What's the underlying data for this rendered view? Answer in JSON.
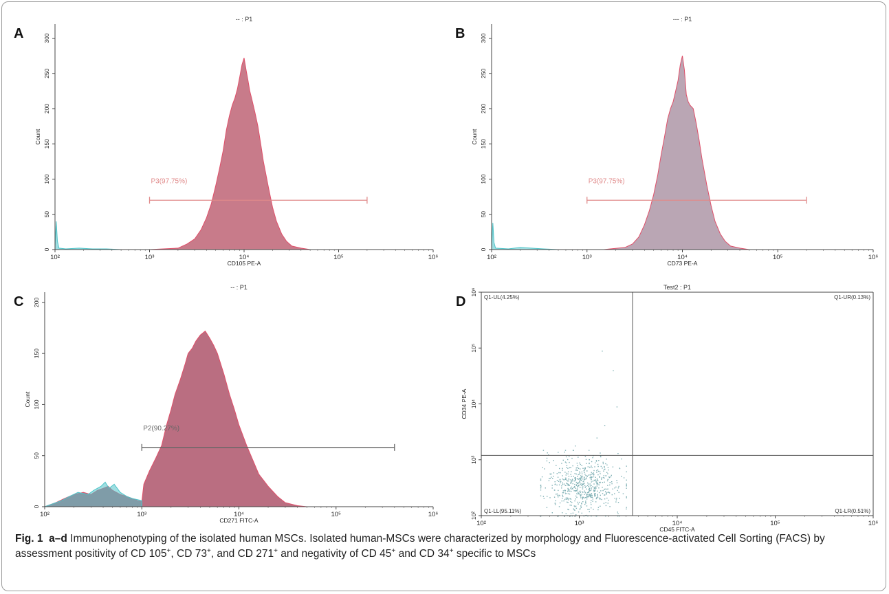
{
  "chart_data": [
    {
      "panel": "A",
      "type": "area",
      "title": "-- : P1",
      "xlabel": "CD105 PE-A",
      "ylabel": "Count",
      "xscale": "log",
      "xlim": [
        100,
        1000000
      ],
      "ylim": [
        0,
        320
      ],
      "xticks": [
        "10²",
        "10³",
        "10⁴",
        "10⁵",
        "10⁶"
      ],
      "yticks": [
        "0",
        "50",
        "100",
        "150",
        "200",
        "250",
        "300"
      ],
      "gate": {
        "label": "P3(97.75%)",
        "x_range": [
          1000,
          200000
        ],
        "y": 70,
        "color": "#e08a8a"
      },
      "series": [
        {
          "color": "#c0697a",
          "points": [
            [
              1000,
              0
            ],
            [
              2000,
              2
            ],
            [
              2500,
              8
            ],
            [
              3000,
              15
            ],
            [
              3500,
              28
            ],
            [
              4000,
              45
            ],
            [
              4500,
              65
            ],
            [
              5000,
              90
            ],
            [
              5500,
              115
            ],
            [
              6000,
              140
            ],
            [
              6500,
              170
            ],
            [
              7000,
              190
            ],
            [
              7500,
              205
            ],
            [
              8000,
              215
            ],
            [
              8500,
              228
            ],
            [
              9000,
              245
            ],
            [
              9500,
              262
            ],
            [
              10000,
              272
            ],
            [
              10500,
              255
            ],
            [
              11000,
              240
            ],
            [
              11500,
              225
            ],
            [
              12000,
              215
            ],
            [
              13000,
              195
            ],
            [
              14000,
              175
            ],
            [
              15000,
              150
            ],
            [
              16000,
              125
            ],
            [
              18000,
              90
            ],
            [
              20000,
              60
            ],
            [
              22000,
              40
            ],
            [
              25000,
              22
            ],
            [
              28000,
              12
            ],
            [
              32000,
              5
            ],
            [
              40000,
              2
            ],
            [
              50000,
              0
            ]
          ]
        },
        {
          "color": "#4fc3c8",
          "points": [
            [
              100,
              4
            ],
            [
              103,
              40
            ],
            [
              106,
              12
            ],
            [
              110,
              2
            ],
            [
              130,
              1
            ],
            [
              180,
              2
            ],
            [
              250,
              1
            ],
            [
              350,
              1
            ],
            [
              500,
              0
            ]
          ]
        }
      ]
    },
    {
      "panel": "B",
      "type": "area",
      "title": "--- : P1",
      "xlabel": "CD73 PE-A",
      "ylabel": "Count",
      "xscale": "log",
      "xlim": [
        100,
        1000000
      ],
      "ylim": [
        0,
        320
      ],
      "xticks": [
        "10²",
        "10³",
        "10⁴",
        "10⁵",
        "10⁶"
      ],
      "yticks": [
        "0",
        "50",
        "100",
        "150",
        "200",
        "250",
        "300"
      ],
      "gate": {
        "label": "P3(97.75%)",
        "x_range": [
          1000,
          200000
        ],
        "y": 70,
        "color": "#e08a8a"
      },
      "series": [
        {
          "color": "#b09aaa",
          "points": [
            [
              1500,
              0
            ],
            [
              2500,
              3
            ],
            [
              3000,
              8
            ],
            [
              3500,
              18
            ],
            [
              4000,
              35
            ],
            [
              4500,
              55
            ],
            [
              5000,
              78
            ],
            [
              5500,
              105
            ],
            [
              6000,
              135
            ],
            [
              6500,
              160
            ],
            [
              7000,
              185
            ],
            [
              7500,
              200
            ],
            [
              8000,
              210
            ],
            [
              8500,
              225
            ],
            [
              9000,
              240
            ],
            [
              9500,
              262
            ],
            [
              10000,
              275
            ],
            [
              10500,
              255
            ],
            [
              11000,
              220
            ],
            [
              11500,
              210
            ],
            [
              12000,
              205
            ],
            [
              13000,
              200
            ],
            [
              14000,
              178
            ],
            [
              15000,
              155
            ],
            [
              16000,
              130
            ],
            [
              18000,
              92
            ],
            [
              20000,
              62
            ],
            [
              22000,
              40
            ],
            [
              25000,
              22
            ],
            [
              28000,
              12
            ],
            [
              32000,
              5
            ],
            [
              40000,
              2
            ],
            [
              50000,
              0
            ]
          ]
        },
        {
          "color": "#4fc3c8",
          "points": [
            [
              100,
              2
            ],
            [
              103,
              38
            ],
            [
              106,
              10
            ],
            [
              110,
              2
            ],
            [
              150,
              1
            ],
            [
              200,
              3
            ],
            [
              260,
              2
            ],
            [
              350,
              1
            ],
            [
              500,
              0
            ]
          ]
        }
      ]
    },
    {
      "panel": "C",
      "type": "area",
      "title": "-- : P1",
      "xlabel": "CD271 FITC-A",
      "ylabel": "Count",
      "xscale": "log",
      "xlim": [
        100,
        1000000
      ],
      "ylim": [
        0,
        210
      ],
      "xticks": [
        "10²",
        "10³",
        "10⁴",
        "10⁵",
        "10⁶"
      ],
      "yticks": [
        "0",
        "50",
        "100",
        "150",
        "200"
      ],
      "gate": {
        "label": "P2(90.27%)",
        "x_range": [
          1000,
          400000
        ],
        "y": 58,
        "color": "#666666"
      },
      "series": [
        {
          "color": "#b05a70",
          "points": [
            [
              100,
              0
            ],
            [
              130,
              4
            ],
            [
              160,
              8
            ],
            [
              200,
              12
            ],
            [
              250,
              14
            ],
            [
              300,
              12
            ],
            [
              350,
              16
            ],
            [
              400,
              18
            ],
            [
              450,
              20
            ],
            [
              500,
              16
            ],
            [
              600,
              12
            ],
            [
              700,
              10
            ],
            [
              800,
              8
            ],
            [
              900,
              6
            ],
            [
              1000,
              5
            ],
            [
              1050,
              22
            ],
            [
              1200,
              35
            ],
            [
              1400,
              48
            ],
            [
              1600,
              60
            ],
            [
              1800,
              80
            ],
            [
              2000,
              95
            ],
            [
              2200,
              110
            ],
            [
              2500,
              125
            ],
            [
              2800,
              140
            ],
            [
              3000,
              150
            ],
            [
              3300,
              155
            ],
            [
              3600,
              162
            ],
            [
              4000,
              168
            ],
            [
              4500,
              172
            ],
            [
              5000,
              165
            ],
            [
              5500,
              158
            ],
            [
              6000,
              150
            ],
            [
              7000,
              130
            ],
            [
              8000,
              110
            ],
            [
              9000,
              95
            ],
            [
              10000,
              80
            ],
            [
              12000,
              60
            ],
            [
              14000,
              45
            ],
            [
              16000,
              32
            ],
            [
              20000,
              20
            ],
            [
              25000,
              10
            ],
            [
              30000,
              4
            ],
            [
              40000,
              1
            ],
            [
              50000,
              0
            ]
          ]
        },
        {
          "color": "#4fc3c8",
          "points": [
            [
              100,
              0
            ],
            [
              150,
              6
            ],
            [
              180,
              10
            ],
            [
              220,
              14
            ],
            [
              280,
              12
            ],
            [
              320,
              16
            ],
            [
              380,
              20
            ],
            [
              420,
              24
            ],
            [
              460,
              18
            ],
            [
              520,
              22
            ],
            [
              600,
              14
            ],
            [
              700,
              10
            ],
            [
              800,
              8
            ],
            [
              1000,
              6
            ]
          ]
        }
      ]
    },
    {
      "panel": "D",
      "type": "scatter",
      "title": "Test2 : P1",
      "xlabel": "CD45 FITC-A",
      "ylabel": "CD34 PE-A",
      "xscale": "log",
      "yscale": "log",
      "xlim": [
        100,
        1000000
      ],
      "ylim": [
        100,
        1000000
      ],
      "xticks": [
        "10²",
        "10³",
        "10⁴",
        "10⁵",
        "10⁶"
      ],
      "yticks": [
        "10²",
        "10³",
        "10⁴",
        "10⁵",
        "10⁶"
      ],
      "quadrants": {
        "x_split": 3500,
        "y_split": 1200,
        "labels": {
          "UL": "Q1-UL(4.25%)",
          "UR": "Q1-UR(0.13%)",
          "LL": "Q1-LL(95.11%)",
          "LR": "Q1-LR(0.51%)"
        }
      },
      "point_color": "#7fb0b5",
      "cluster": {
        "x_range": [
          400,
          3000
        ],
        "y_range": [
          100,
          1500
        ],
        "center": [
          1100,
          350
        ],
        "n_points": 650
      }
    }
  ],
  "panel_letters": [
    "A",
    "B",
    "C",
    "D"
  ],
  "caption": {
    "fig_label": "Fig. 1",
    "range": "a–d",
    "text_1": " Immunophenotyping of the isolated human MSCs. Isolated human-MSCs were characterized by morphology and Fluorescence-activated Cell Sorting (FACS) by assessment positivity of CD 105",
    "sup_1": "+",
    "text_2": ", CD 73",
    "sup_2": "+",
    "text_3": ", and CD 271",
    "sup_3": "+",
    "text_4": " and negativity of CD 45",
    "sup_4": "+",
    "text_5": " and CD 34",
    "sup_5": "+",
    "text_6": " specific to MSCs"
  }
}
